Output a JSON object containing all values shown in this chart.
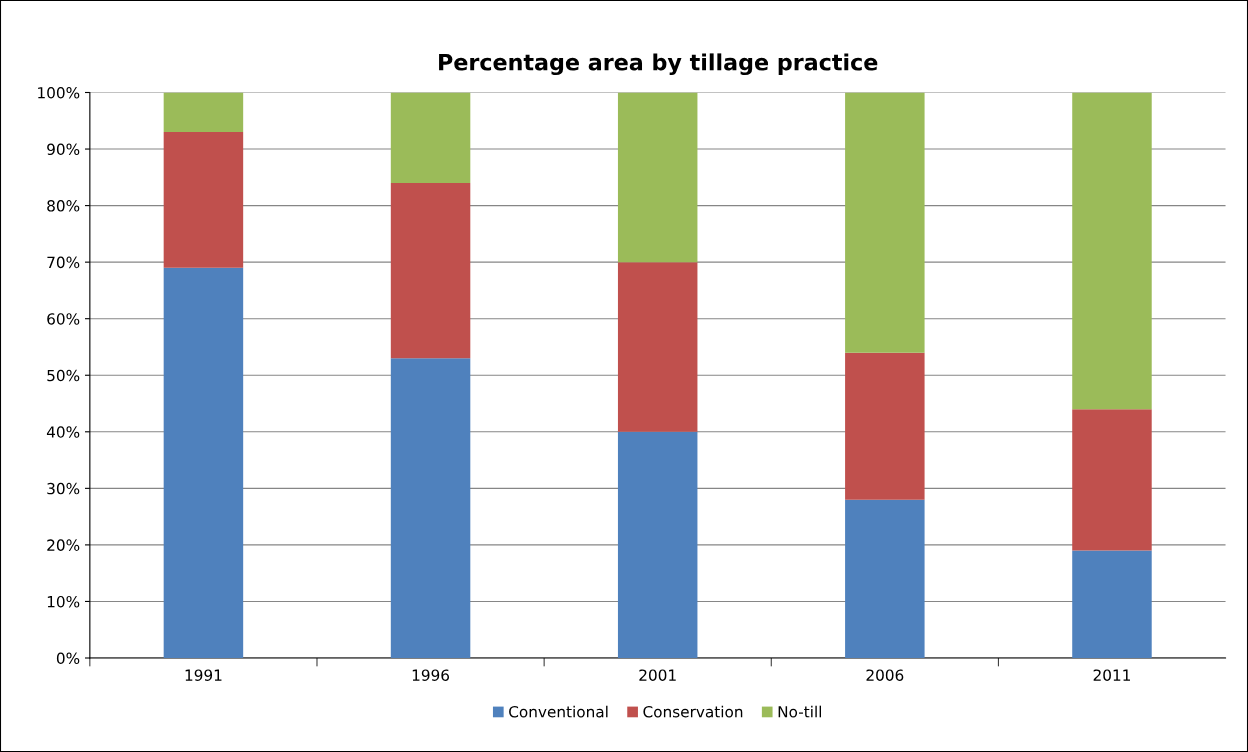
{
  "chart_data": {
    "type": "bar",
    "title": "Percentage area by tillage practice",
    "categories": [
      "1991",
      "1996",
      "2001",
      "2006",
      "2011"
    ],
    "stacked": true,
    "series": [
      {
        "name": "Conventional",
        "color": "#4f81bd",
        "values": [
          69,
          53,
          40,
          28,
          19
        ]
      },
      {
        "name": "Conservation",
        "color": "#c0504d",
        "values": [
          24,
          31,
          30,
          26,
          25
        ]
      },
      {
        "name": "No-till",
        "color": "#9bbb59",
        "values": [
          7,
          16,
          30,
          46,
          56
        ]
      }
    ],
    "ylim": [
      0,
      100
    ],
    "yticks": [
      {
        "value": 0,
        "label": "0%"
      },
      {
        "value": 10,
        "label": "10%"
      },
      {
        "value": 20,
        "label": "20%"
      },
      {
        "value": 30,
        "label": "30%"
      },
      {
        "value": 40,
        "label": "40%"
      },
      {
        "value": 50,
        "label": "50%"
      },
      {
        "value": 60,
        "label": "60%"
      },
      {
        "value": 70,
        "label": "70%"
      },
      {
        "value": 80,
        "label": "80%"
      },
      {
        "value": 90,
        "label": "90%"
      },
      {
        "value": 100,
        "label": "100%"
      }
    ],
    "grid": "y",
    "legend": "bottom"
  }
}
